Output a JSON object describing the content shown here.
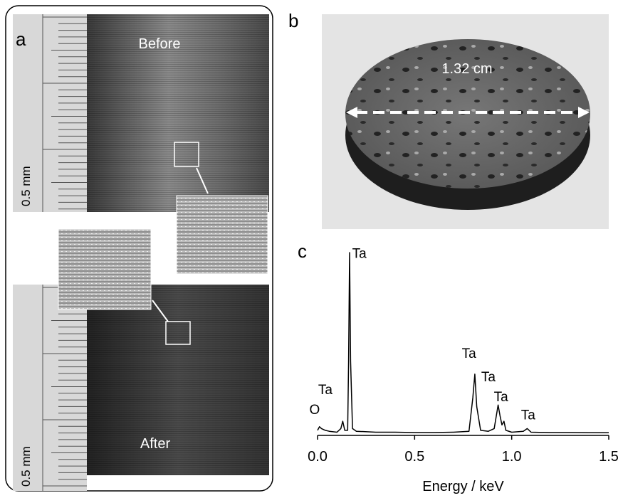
{
  "panels": {
    "a": {
      "label": "a",
      "before": "Before",
      "after": "After",
      "scale_top": "0.5 mm",
      "scale_bottom": "0.5 mm"
    },
    "b": {
      "label": "b",
      "dimension": "1.32 cm"
    },
    "c": {
      "label": "c"
    }
  },
  "chart_data": {
    "type": "line",
    "x_label": "Energy / keV",
    "x": [
      0,
      0.01,
      0.02,
      0.04,
      0.06,
      0.1,
      0.12,
      0.13,
      0.14,
      0.155,
      0.16,
      0.165,
      0.17,
      0.18,
      0.2,
      0.3,
      0.4,
      0.5,
      0.6,
      0.7,
      0.78,
      0.8,
      0.81,
      0.82,
      0.84,
      0.88,
      0.91,
      0.93,
      0.94,
      0.95,
      0.96,
      0.97,
      1.0,
      1.06,
      1.08,
      1.1,
      1.2,
      1.3,
      1.4,
      1.5
    ],
    "series": [
      {
        "color": "#000000",
        "values": [
          2,
          4,
          3,
          2,
          1.5,
          1,
          3,
          7,
          2,
          2,
          40,
          100,
          40,
          3,
          1.5,
          1,
          1,
          0.8,
          0.8,
          1,
          1.5,
          20,
          33,
          15,
          2,
          1.5,
          3,
          16,
          10,
          5,
          7,
          2,
          1,
          1.5,
          3,
          1,
          0.8,
          0.8,
          0.7,
          0.7
        ]
      }
    ],
    "xlim": [
      0,
      1.5
    ],
    "xticks": [
      {
        "value": 0,
        "label": "0.0"
      },
      0.5,
      {
        "value": 1,
        "label": "1.0"
      },
      1.5
    ],
    "ylim": [
      0,
      100
    ],
    "annotations": [
      {
        "text": "O",
        "x": -0.015,
        "y": 11
      },
      {
        "text": "Ta",
        "x": 0.04,
        "y": 22
      },
      {
        "text": "Ta",
        "x": 0.215,
        "y": 97
      },
      {
        "text": "Ta",
        "x": 0.78,
        "y": 42
      },
      {
        "text": "Ta",
        "x": 0.88,
        "y": 29
      },
      {
        "text": "Ta",
        "x": 0.945,
        "y": 18
      },
      {
        "text": "Ta",
        "x": 1.085,
        "y": 8
      }
    ]
  }
}
